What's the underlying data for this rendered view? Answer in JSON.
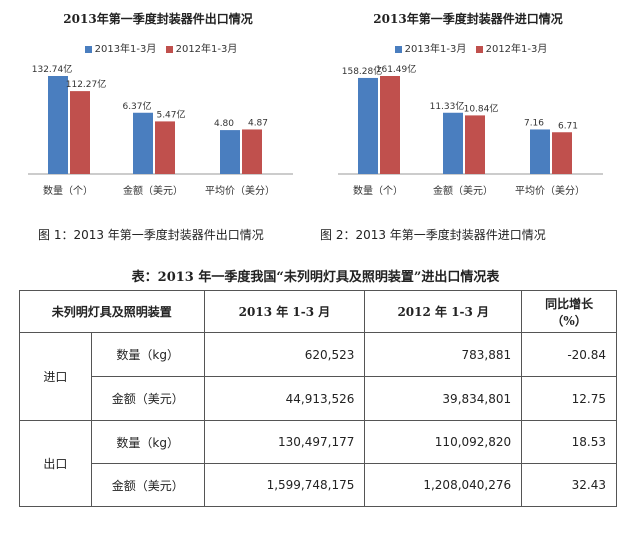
{
  "colors": {
    "series_2013": "#4a7ebf",
    "series_2012": "#c0504d",
    "axis": "#999999"
  },
  "chart_data": [
    {
      "type": "bar",
      "title": "2013年第一季度封装器件出口情况",
      "categories": [
        "数量（个）",
        "金额（美元）",
        "平均价（美分）"
      ],
      "series": [
        {
          "name": "2013年1-3月",
          "values": [
            132.74,
            6.37,
            4.8
          ],
          "labels": [
            "132.74亿",
            "6.37亿",
            "4.80"
          ]
        },
        {
          "name": "2012年1-3月",
          "values": [
            112.27,
            5.47,
            4.87
          ],
          "labels": [
            "112.27亿",
            "5.47亿",
            "4.87"
          ]
        }
      ],
      "legend": "top"
    },
    {
      "type": "bar",
      "title": "2013年第一季度封装器件进口情况",
      "categories": [
        "数量（个）",
        "金额（美元）",
        "平均价（美分）"
      ],
      "series": [
        {
          "name": "2013年1-3月",
          "values": [
            158.28,
            11.33,
            7.16
          ],
          "labels": [
            "158.28亿",
            "11.33亿",
            "7.16"
          ]
        },
        {
          "name": "2012年1-3月",
          "values": [
            161.49,
            10.84,
            6.71
          ],
          "labels": [
            "161.49亿",
            "10.84亿",
            "6.71"
          ]
        }
      ],
      "legend": "top"
    }
  ],
  "captions": {
    "fig1": "图 1：2013 年第一季度封装器件出口情况",
    "fig2": "图 2：2013 年第一季度封装器件进口情况"
  },
  "table": {
    "title": "表：2013 年一季度我国“未列明灯具及照明装置”进出口情况表",
    "headers": [
      "未列明灯具及照明装置",
      "2013 年 1-3 月",
      "2012 年 1-3 月",
      "同比增长（%）"
    ],
    "groups": [
      {
        "label": "进口",
        "rows": [
          {
            "item": "数量（kg）",
            "v2013": "620,523",
            "v2012": "783,881",
            "growth": "-20.84"
          },
          {
            "item": "金额（美元）",
            "v2013": "44,913,526",
            "v2012": "39,834,801",
            "growth": "12.75"
          }
        ]
      },
      {
        "label": "出口",
        "rows": [
          {
            "item": "数量（kg）",
            "v2013": "130,497,177",
            "v2012": "110,092,820",
            "growth": "18.53"
          },
          {
            "item": "金额（美元）",
            "v2013": "1,599,748,175",
            "v2012": "1,208,040,276",
            "growth": "32.43"
          }
        ]
      }
    ]
  }
}
